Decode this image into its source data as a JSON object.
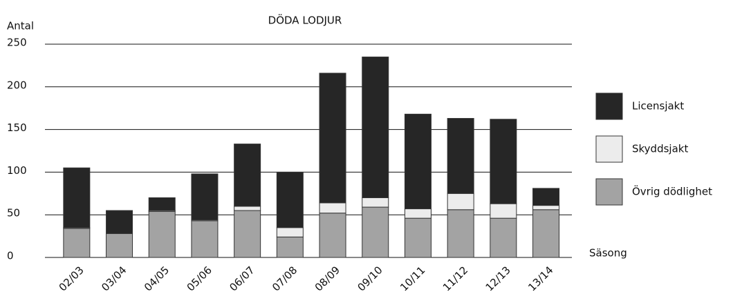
{
  "chart_data": {
    "type": "stacked_bar",
    "title": "DÖDA LODJUR",
    "y_label": "Antal",
    "x_label": "Säsong",
    "categories": [
      "02/03",
      "03/04",
      "04/05",
      "05/06",
      "06/07",
      "07/08",
      "08/09",
      "09/10",
      "10/11",
      "11/12",
      "12/13",
      "13/14"
    ],
    "series": [
      {
        "name": "Licensjakt",
        "color": "#262626",
        "values": [
          70,
          27,
          15,
          54,
          73,
          65,
          152,
          165,
          111,
          88,
          99,
          20
        ]
      },
      {
        "name": "Skyddsjakt",
        "color": "#ececec",
        "values": [
          1,
          0,
          1,
          1,
          5,
          11,
          12,
          11,
          11,
          19,
          17,
          5
        ]
      },
      {
        "name": "Övrig dödlighet",
        "color": "#a3a3a3",
        "values": [
          34,
          28,
          54,
          43,
          55,
          24,
          52,
          59,
          46,
          56,
          46,
          56
        ]
      }
    ],
    "ylim": [
      0,
      250
    ],
    "yticks": [
      0,
      50,
      100,
      150,
      200,
      250
    ],
    "grid": true,
    "legend": "right"
  }
}
